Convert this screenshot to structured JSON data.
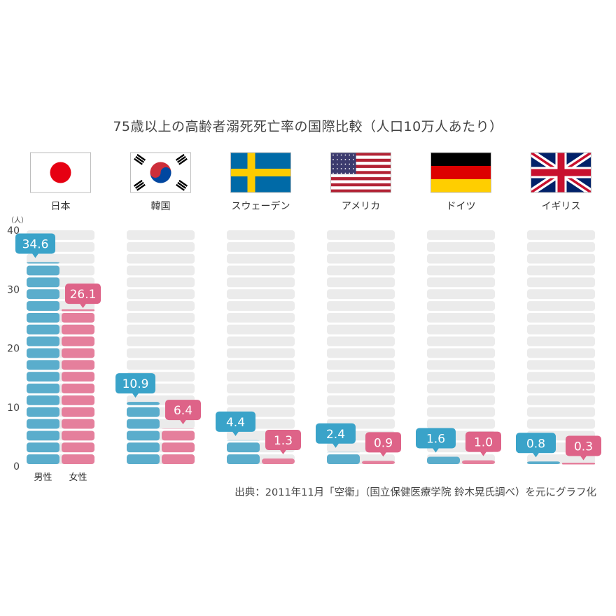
{
  "chart_data": {
    "type": "bar",
    "title": "75歳以上の高齢者溺死死亡率の国際比較（人口10万人あたり）",
    "unit": "（人）",
    "ylim": [
      0,
      40
    ],
    "yticks": [
      "0",
      "10",
      "20",
      "30",
      "40"
    ],
    "categories": [
      "日本",
      "韓国",
      "スウェーデン",
      "アメリカ",
      "ドイツ",
      "イギリス"
    ],
    "flags": [
      "japan-flag",
      "korea-flag",
      "sweden-flag",
      "usa-flag",
      "germany-flag",
      "uk-flag"
    ],
    "series": [
      {
        "name": "男性",
        "values": [
          34.6,
          10.9,
          4.4,
          2.4,
          1.6,
          0.8
        ],
        "value_labels": [
          "34.6",
          "10.9",
          "4.4",
          "2.4",
          "1.6",
          "0.8"
        ],
        "color": "#5aadcc"
      },
      {
        "name": "女性",
        "values": [
          26.1,
          6.4,
          1.3,
          0.9,
          1.0,
          0.3
        ],
        "value_labels": [
          "26.1",
          "6.4",
          "1.3",
          "0.9",
          "1.0",
          "0.3"
        ],
        "color": "#e57f9c"
      }
    ],
    "label_colors": {
      "male": "#3aa3c9",
      "female": "#de6388"
    },
    "slot_color": "#ebebeb",
    "legend_position": "bottom-left",
    "source": "出典：2011年11月「空衛」（国立保健医療学院 鈴木晃氏調べ）を元にグラフ化"
  }
}
